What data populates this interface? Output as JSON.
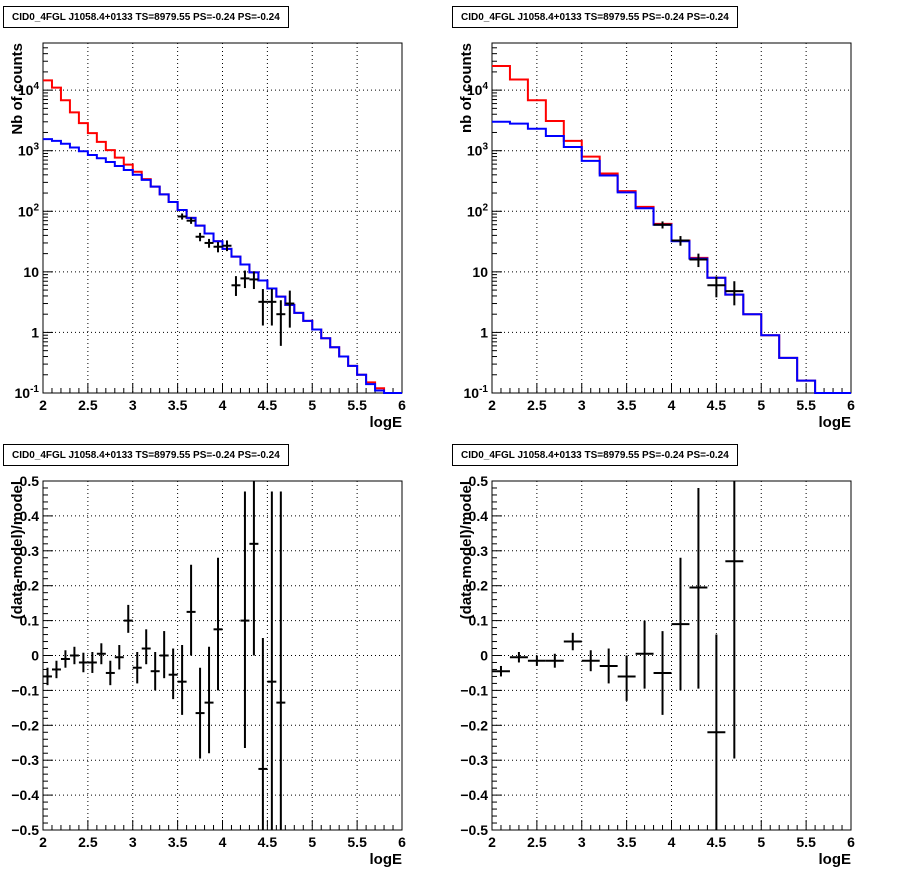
{
  "chart_data": [
    {
      "type": "line",
      "title": "CID0_4FGL J1058.4+0133 TS=8979.55 PS=-0.24 PS=-0.24",
      "xlabel": "logE",
      "ylabel": "Nb of counts",
      "xlim": [
        2,
        6
      ],
      "ylim": [
        0.1,
        60000
      ],
      "yscale": "log",
      "grid": true,
      "xticks": [
        "2",
        "2.5",
        "3",
        "3.5",
        "4",
        "4.5",
        "5",
        "5.5",
        "6"
      ],
      "yticks": [
        "10^{-1}",
        "1",
        "10",
        "10^{2}",
        "10^{3}",
        "10^{4}"
      ],
      "bin_edges": [
        2.0,
        2.1,
        2.2,
        2.3,
        2.4,
        2.5,
        2.6,
        2.7,
        2.8,
        2.9,
        3.0,
        3.1,
        3.2,
        3.3,
        3.4,
        3.5,
        3.6,
        3.7,
        3.8,
        3.9,
        4.0,
        4.1,
        4.2,
        4.3,
        4.4,
        4.5,
        4.6,
        4.7,
        4.8,
        4.9,
        5.0,
        5.1,
        5.2,
        5.3,
        5.4,
        5.5,
        5.6,
        5.7,
        5.8,
        5.9,
        6.0
      ],
      "series": [
        {
          "color": "#ff0000",
          "values": [
            14500,
            11000,
            6800,
            4300,
            2850,
            1950,
            1400,
            1020,
            770,
            590,
            450,
            340,
            255,
            190,
            142,
            105,
            78,
            58,
            43,
            32,
            24,
            17.8,
            13.2,
            9.8,
            7.2,
            5.3,
            3.9,
            2.85,
            2.1,
            1.55,
            1.12,
            0.8,
            0.57,
            0.4,
            0.28,
            0.2,
            0.15,
            0.12,
            0.1,
            0.1
          ]
        },
        {
          "color": "#0000ff",
          "values": [
            1550,
            1450,
            1300,
            1130,
            980,
            850,
            750,
            650,
            560,
            480,
            400,
            330,
            255,
            190,
            142,
            105,
            78,
            58,
            43,
            32,
            24,
            17.8,
            13.2,
            9.8,
            7.2,
            5.3,
            3.9,
            2.85,
            2.1,
            1.55,
            1.12,
            0.8,
            0.57,
            0.4,
            0.28,
            0.2,
            0.14,
            0.11,
            0.1,
            0.1
          ]
        }
      ],
      "points": [
        {
          "x": 3.55,
          "y": 82,
          "xerr": 0.05,
          "ylo": 73,
          "yhi": 92
        },
        {
          "x": 3.65,
          "y": 70,
          "xerr": 0.05,
          "ylo": 62,
          "yhi": 79
        },
        {
          "x": 3.75,
          "y": 38,
          "xerr": 0.05,
          "ylo": 32,
          "yhi": 44
        },
        {
          "x": 3.85,
          "y": 30,
          "xerr": 0.05,
          "ylo": 25,
          "yhi": 35
        },
        {
          "x": 3.95,
          "y": 26,
          "xerr": 0.05,
          "ylo": 21,
          "yhi": 31
        },
        {
          "x": 4.05,
          "y": 27,
          "xerr": 0.05,
          "ylo": 22,
          "yhi": 33
        },
        {
          "x": 4.15,
          "y": 6,
          "xerr": 0.05,
          "ylo": 4,
          "yhi": 8.5
        },
        {
          "x": 4.25,
          "y": 7.8,
          "xerr": 0.05,
          "ylo": 5.4,
          "yhi": 10.5
        },
        {
          "x": 4.35,
          "y": 7.5,
          "xerr": 0.05,
          "ylo": 5.2,
          "yhi": 10.2
        },
        {
          "x": 4.45,
          "y": 3.2,
          "xerr": 0.05,
          "ylo": 1.3,
          "yhi": 5.2
        },
        {
          "x": 4.55,
          "y": 3.2,
          "xerr": 0.05,
          "ylo": 1.3,
          "yhi": 5.2
        },
        {
          "x": 4.65,
          "y": 2,
          "xerr": 0.05,
          "ylo": 0.6,
          "yhi": 3.4
        },
        {
          "x": 4.75,
          "y": 3,
          "xerr": 0.05,
          "ylo": 1.2,
          "yhi": 4.9
        }
      ]
    },
    {
      "type": "line",
      "title": "CID0_4FGL J1058.4+0133 TS=8979.55 PS=-0.24 PS=-0.24",
      "xlabel": "logE",
      "ylabel": "nb of counts",
      "xlim": [
        2,
        6
      ],
      "ylim": [
        0.1,
        60000
      ],
      "yscale": "log",
      "grid": true,
      "xticks": [
        "2",
        "2.5",
        "3",
        "3.5",
        "4",
        "4.5",
        "5",
        "5.5",
        "6"
      ],
      "yticks": [
        "10^{-1}",
        "1",
        "10",
        "10^{2}",
        "10^{3}",
        "10^{4}"
      ],
      "bin_edges": [
        2.0,
        2.2,
        2.4,
        2.6,
        2.8,
        3.0,
        3.2,
        3.4,
        3.6,
        3.8,
        4.0,
        4.2,
        4.4,
        4.6,
        4.8,
        5.0,
        5.2,
        5.4,
        5.6,
        5.8,
        6.0
      ],
      "series": [
        {
          "color": "#ff0000",
          "values": [
            25000,
            15000,
            6800,
            3100,
            1450,
            800,
            420,
            215,
            118,
            62,
            33,
            17,
            8,
            4.2,
            2,
            0.9,
            0.38,
            0.16,
            0.1,
            0.1
          ]
        },
        {
          "color": "#0000ff",
          "values": [
            3000,
            2800,
            2300,
            1750,
            1150,
            680,
            390,
            205,
            112,
            60,
            32,
            16.5,
            8,
            4.2,
            2,
            0.9,
            0.38,
            0.16,
            0.1,
            0.1
          ]
        }
      ],
      "points": [
        {
          "x": 3.9,
          "y": 60,
          "xerr": 0.1,
          "ylo": 52,
          "yhi": 68
        },
        {
          "x": 4.1,
          "y": 33,
          "xerr": 0.1,
          "ylo": 27,
          "yhi": 39
        },
        {
          "x": 4.3,
          "y": 16,
          "xerr": 0.1,
          "ylo": 12,
          "yhi": 20
        },
        {
          "x": 4.5,
          "y": 6,
          "xerr": 0.1,
          "ylo": 3.8,
          "yhi": 8.4
        },
        {
          "x": 4.7,
          "y": 4.8,
          "xerr": 0.1,
          "ylo": 2.8,
          "yhi": 7
        }
      ]
    },
    {
      "type": "scatter",
      "title": "CID0_4FGL J1058.4+0133 TS=8979.55 PS=-0.24 PS=-0.24",
      "xlabel": "logE",
      "ylabel": "(data-model)/model",
      "xlim": [
        2,
        6
      ],
      "ylim": [
        -0.5,
        0.5
      ],
      "grid": true,
      "xticks": [
        "2",
        "2.5",
        "3",
        "3.5",
        "4",
        "4.5",
        "5",
        "5.5",
        "6"
      ],
      "yticks": [
        "−0.5",
        "−0.4",
        "−0.3",
        "−0.2",
        "−0.1",
        "0",
        "0.1",
        "0.2",
        "0.3",
        "0.4",
        "0.5"
      ],
      "points": [
        {
          "x": 2.05,
          "y": -0.06,
          "xerr": 0.05,
          "ylo": -0.085,
          "yhi": -0.035
        },
        {
          "x": 2.15,
          "y": -0.04,
          "xerr": 0.05,
          "ylo": -0.065,
          "yhi": -0.015
        },
        {
          "x": 2.25,
          "y": -0.01,
          "xerr": 0.05,
          "ylo": -0.035,
          "yhi": 0.015
        },
        {
          "x": 2.35,
          "y": 0.0,
          "xerr": 0.05,
          "ylo": -0.025,
          "yhi": 0.025
        },
        {
          "x": 2.45,
          "y": -0.02,
          "xerr": 0.05,
          "ylo": -0.048,
          "yhi": 0.008
        },
        {
          "x": 2.55,
          "y": -0.02,
          "xerr": 0.05,
          "ylo": -0.05,
          "yhi": 0.01
        },
        {
          "x": 2.65,
          "y": 0.005,
          "xerr": 0.05,
          "ylo": -0.025,
          "yhi": 0.035
        },
        {
          "x": 2.75,
          "y": -0.05,
          "xerr": 0.05,
          "ylo": -0.085,
          "yhi": -0.015
        },
        {
          "x": 2.85,
          "y": -0.005,
          "xerr": 0.05,
          "ylo": -0.04,
          "yhi": 0.03
        },
        {
          "x": 2.95,
          "y": 0.1,
          "xerr": 0.05,
          "ylo": 0.065,
          "yhi": 0.145
        },
        {
          "x": 3.05,
          "y": -0.035,
          "xerr": 0.05,
          "ylo": -0.08,
          "yhi": 0.01
        },
        {
          "x": 3.15,
          "y": 0.02,
          "xerr": 0.05,
          "ylo": -0.025,
          "yhi": 0.075
        },
        {
          "x": 3.25,
          "y": -0.045,
          "xerr": 0.05,
          "ylo": -0.1,
          "yhi": 0.01
        },
        {
          "x": 3.35,
          "y": 0.0,
          "xerr": 0.05,
          "ylo": -0.065,
          "yhi": 0.07
        },
        {
          "x": 3.45,
          "y": -0.055,
          "xerr": 0.05,
          "ylo": -0.125,
          "yhi": 0.02
        },
        {
          "x": 3.55,
          "y": -0.075,
          "xerr": 0.05,
          "ylo": -0.17,
          "yhi": 0.03
        },
        {
          "x": 3.65,
          "y": 0.125,
          "xerr": 0.05,
          "ylo": 0.0,
          "yhi": 0.26
        },
        {
          "x": 3.75,
          "y": -0.165,
          "xerr": 0.05,
          "ylo": -0.295,
          "yhi": -0.035
        },
        {
          "x": 3.85,
          "y": -0.135,
          "xerr": 0.05,
          "ylo": -0.28,
          "yhi": 0.025
        },
        {
          "x": 3.95,
          "y": 0.075,
          "xerr": 0.05,
          "ylo": -0.1,
          "yhi": 0.28
        },
        {
          "x": 4.25,
          "y": 0.1,
          "xerr": 0.05,
          "ylo": -0.265,
          "yhi": 0.47
        },
        {
          "x": 4.35,
          "y": 0.32,
          "xerr": 0.05,
          "ylo": 0.0,
          "yhi": 0.5
        },
        {
          "x": 4.45,
          "y": -0.325,
          "xerr": 0.05,
          "ylo": -0.5,
          "yhi": 0.05
        },
        {
          "x": 4.55,
          "y": -0.075,
          "xerr": 0.05,
          "ylo": -0.5,
          "yhi": 0.47
        },
        {
          "x": 4.65,
          "y": -0.135,
          "xerr": 0.05,
          "ylo": -0.5,
          "yhi": 0.47
        }
      ]
    },
    {
      "type": "scatter",
      "title": "CID0_4FGL J1058.4+0133 TS=8979.55 PS=-0.24 PS=-0.24",
      "xlabel": "logE",
      "ylabel": "(data-model)/model",
      "xlim": [
        2,
        6
      ],
      "ylim": [
        -0.5,
        0.5
      ],
      "grid": true,
      "xticks": [
        "2",
        "2.5",
        "3",
        "3.5",
        "4",
        "4.5",
        "5",
        "5.5",
        "6"
      ],
      "yticks": [
        "−0.5",
        "−0.4",
        "−0.3",
        "−0.2",
        "−0.1",
        "0",
        "0.1",
        "0.2",
        "0.3",
        "0.4",
        "0.5"
      ],
      "points": [
        {
          "x": 2.1,
          "y": -0.045,
          "xerr": 0.1,
          "ylo": -0.06,
          "yhi": -0.03
        },
        {
          "x": 2.3,
          "y": -0.005,
          "xerr": 0.1,
          "ylo": -0.02,
          "yhi": 0.01
        },
        {
          "x": 2.5,
          "y": -0.015,
          "xerr": 0.1,
          "ylo": -0.03,
          "yhi": 0.0
        },
        {
          "x": 2.7,
          "y": -0.015,
          "xerr": 0.1,
          "ylo": -0.035,
          "yhi": 0.005
        },
        {
          "x": 2.9,
          "y": 0.04,
          "xerr": 0.1,
          "ylo": 0.015,
          "yhi": 0.065
        },
        {
          "x": 3.1,
          "y": -0.015,
          "xerr": 0.1,
          "ylo": -0.045,
          "yhi": 0.015
        },
        {
          "x": 3.3,
          "y": -0.03,
          "xerr": 0.1,
          "ylo": -0.08,
          "yhi": 0.02
        },
        {
          "x": 3.5,
          "y": -0.06,
          "xerr": 0.1,
          "ylo": -0.13,
          "yhi": 0.0
        },
        {
          "x": 3.7,
          "y": 0.005,
          "xerr": 0.1,
          "ylo": -0.095,
          "yhi": 0.1
        },
        {
          "x": 3.9,
          "y": -0.05,
          "xerr": 0.1,
          "ylo": -0.17,
          "yhi": 0.07
        },
        {
          "x": 4.1,
          "y": 0.09,
          "xerr": 0.1,
          "ylo": -0.1,
          "yhi": 0.28
        },
        {
          "x": 4.3,
          "y": 0.195,
          "xerr": 0.1,
          "ylo": -0.095,
          "yhi": 0.48
        },
        {
          "x": 4.5,
          "y": -0.22,
          "xerr": 0.1,
          "ylo": -0.5,
          "yhi": 0.06
        },
        {
          "x": 4.7,
          "y": 0.27,
          "xerr": 0.1,
          "ylo": -0.295,
          "yhi": 0.5
        }
      ]
    }
  ]
}
